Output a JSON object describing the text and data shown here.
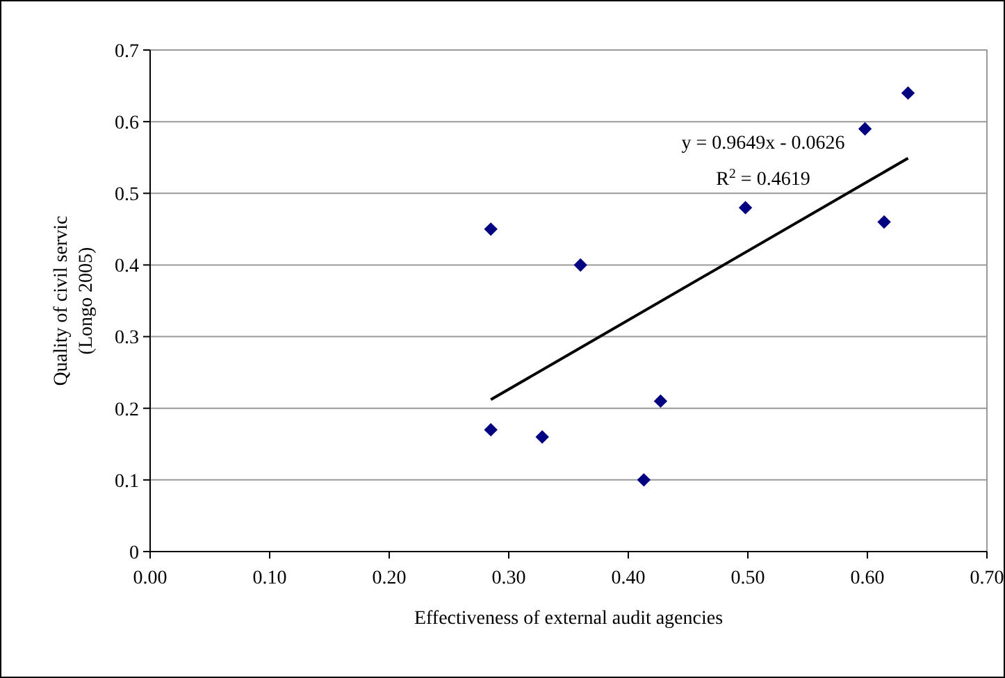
{
  "chart_data": {
    "type": "scatter",
    "xlabel": "Effectiveness of external audit agencies",
    "ylabel": "Quality of civil servic\n(Longo 2005)",
    "xlim": [
      0,
      0.7
    ],
    "ylim": [
      0,
      0.7
    ],
    "xticks": [
      {
        "value": 0,
        "label": "0.00"
      },
      {
        "value": 0.1,
        "label": "0.10"
      },
      {
        "value": 0.2,
        "label": "0.20"
      },
      {
        "value": 0.3,
        "label": "0.30"
      },
      {
        "value": 0.4,
        "label": "0.40"
      },
      {
        "value": 0.5,
        "label": "0.50"
      },
      {
        "value": 0.6,
        "label": "0.60"
      },
      {
        "value": 0.7,
        "label": "0.70"
      }
    ],
    "yticks": [
      0,
      0.1,
      0.2,
      0.3,
      0.4,
      0.5,
      0.6,
      0.7
    ],
    "grid": "y",
    "series": [
      {
        "color": "#000080",
        "marker": "diamond",
        "x": [
          0.285,
          0.285,
          0.328,
          0.36,
          0.413,
          0.427,
          0.498,
          0.598,
          0.614,
          0.634
        ],
        "values": [
          0.45,
          0.17,
          0.16,
          0.4,
          0.1,
          0.21,
          0.48,
          0.59,
          0.46,
          0.64
        ]
      },
      {
        "type": "line",
        "color": "#000000",
        "marker": "none",
        "line_style": "solid",
        "x": [
          0.285,
          0.634
        ],
        "values": [
          0.212,
          0.549
        ]
      }
    ],
    "annotations": [
      "y = 0.9649x - 0.0626",
      "R$^{2}$ = 0.4619"
    ]
  }
}
